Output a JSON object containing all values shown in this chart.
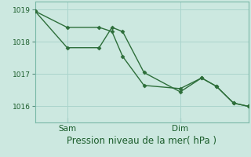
{
  "title": "",
  "xlabel": "Pression niveau de la mer( hPa )",
  "ylabel": "",
  "bg_color": "#cce8e0",
  "grid_color": "#aad4cc",
  "line_color": "#2d6e3a",
  "ylim": [
    1015.5,
    1019.25
  ],
  "xlim": [
    0,
    10
  ],
  "yticks": [
    1016,
    1017,
    1018,
    1019
  ],
  "xtick_positions": [
    1.5,
    6.8
  ],
  "xtick_labels": [
    "Sam",
    "Dim"
  ],
  "line1_x": [
    0.0,
    1.5,
    3.0,
    3.6,
    4.1,
    5.1,
    6.8,
    7.8,
    8.5,
    9.3,
    10.0
  ],
  "line1_y": [
    1018.95,
    1018.45,
    1018.45,
    1018.32,
    1017.55,
    1016.65,
    1016.55,
    1016.88,
    1016.62,
    1016.1,
    1016.0
  ],
  "line2_x": [
    0.0,
    1.5,
    3.0,
    3.6,
    4.1,
    5.1,
    6.8,
    7.8,
    8.5,
    9.3,
    10.0
  ],
  "line2_y": [
    1018.95,
    1017.82,
    1017.82,
    1018.45,
    1018.32,
    1017.05,
    1016.45,
    1016.88,
    1016.62,
    1016.1,
    1016.0
  ],
  "marker_size": 2.5,
  "linewidth": 1.0,
  "xlabel_fontsize": 8.5,
  "ytick_fontsize": 6.5,
  "xtick_fontsize": 7.5,
  "xlabel_color": "#1a5c2a",
  "tick_label_color": "#1a5c2a",
  "spine_color": "#7ab8a8",
  "tick_color": "#5a9080"
}
